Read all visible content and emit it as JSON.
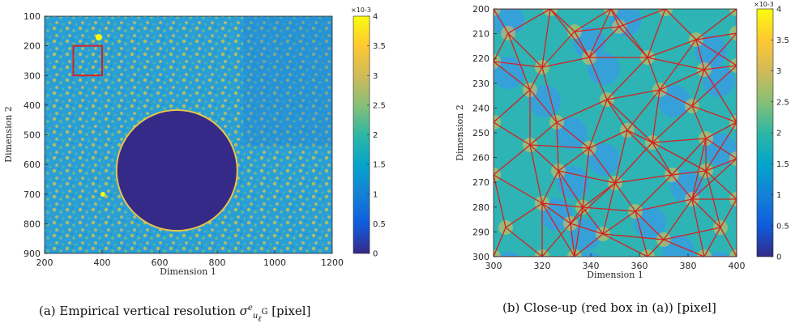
{
  "chart_data": [
    {
      "type": "heatmap",
      "panel": "a",
      "xlabel": "Dimension 1",
      "ylabel": "Dimension 2",
      "xlim": [
        200,
        1200
      ],
      "ylim": [
        100,
        900
      ],
      "y_reversed": true,
      "xticks": [
        200,
        400,
        600,
        800,
        1000,
        1200
      ],
      "yticks": [
        100,
        200,
        300,
        400,
        500,
        600,
        700,
        800,
        900
      ],
      "colorbar": {
        "min": 0,
        "max": 4,
        "ticks": [
          "0",
          "0.5",
          "1",
          "1.5",
          "2",
          "2.5",
          "3",
          "3.5",
          "4"
        ],
        "exponent": "×10-3",
        "colormap": "parula"
      },
      "annotations": {
        "red_box": {
          "x": [
            300,
            400
          ],
          "y": [
            200,
            300
          ],
          "color": "#d62020"
        },
        "circle": {
          "center": [
            660,
            620
          ],
          "radius": 210,
          "value": 0
        }
      }
    },
    {
      "type": "heatmap",
      "panel": "b",
      "xlabel": "Dimension 1",
      "ylabel": "Dimension 2",
      "xlim": [
        300,
        400
      ],
      "ylim": [
        200,
        300
      ],
      "y_reversed": true,
      "xticks": [
        300,
        320,
        340,
        360,
        380,
        400
      ],
      "yticks": [
        200,
        210,
        220,
        230,
        240,
        250,
        260,
        270,
        280,
        290,
        300
      ],
      "colorbar": {
        "min": 0,
        "max": 4,
        "ticks": [
          "0",
          "0.5",
          "1",
          "1.5",
          "2",
          "2.5",
          "3",
          "3.5",
          "4"
        ],
        "exponent": "×10-3",
        "colormap": "parula"
      },
      "mesh_color": "#d62020"
    }
  ],
  "captions": {
    "a": {
      "prefix": "(a) Empirical vertical resolution ",
      "suffix": " [pixel]",
      "symbol": "σ",
      "sup": "e",
      "sub_main": "u",
      "sub_sub": "ℓ",
      "sub_sup": "G"
    },
    "b": {
      "text": "(b) Close-up (red box in (a)) [pixel]"
    }
  }
}
